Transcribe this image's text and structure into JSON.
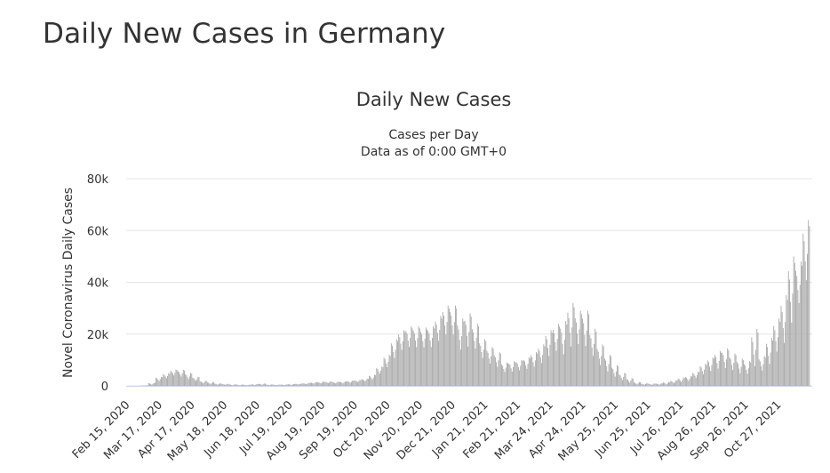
{
  "page": {
    "title": "Daily New Cases in Germany"
  },
  "chart_data": {
    "type": "bar",
    "title": "Daily New Cases",
    "subtitle": [
      "Cases per Day",
      "Data as of 0:00 GMT+0"
    ],
    "xlabel": "",
    "ylabel": "Novel Coronavirus Daily Cases",
    "ylim": [
      0,
      80000
    ],
    "yticks": [
      0,
      20000,
      40000,
      60000,
      80000
    ],
    "ytick_labels": [
      "0",
      "20k",
      "40k",
      "60k",
      "80k"
    ],
    "grid": true,
    "legend": "none",
    "bar_color": "#a6a6a6",
    "x_range": [
      "2020-02-15",
      "2021-11-28"
    ],
    "xtick_labels": [
      "Feb 15, 2020",
      "Mar 17, 2020",
      "Apr 17, 2020",
      "May 18, 2020",
      "Jun 18, 2020",
      "Jul 19, 2020",
      "Aug 19, 2020",
      "Sep 19, 2020",
      "Oct 20, 2020",
      "Nov 20, 2020",
      "Dec 21, 2020",
      "Jan 21, 2021",
      "Feb 21, 2021",
      "Mar 24, 2021",
      "Apr 24, 2021",
      "May 25, 2021",
      "Jun 25, 2021",
      "Jul 26, 2021",
      "Aug 26, 2021",
      "Sep 26, 2021",
      "Oct 27, 2021"
    ],
    "weekly": [
      {
        "week_of": "2020-02-15",
        "low": 0,
        "high": 0
      },
      {
        "week_of": "2020-02-22",
        "low": 0,
        "high": 30
      },
      {
        "week_of": "2020-02-29",
        "low": 50,
        "high": 200
      },
      {
        "week_of": "2020-03-07",
        "low": 300,
        "high": 1200
      },
      {
        "week_of": "2020-03-14",
        "low": 1500,
        "high": 3500
      },
      {
        "week_of": "2020-03-21",
        "low": 2500,
        "high": 4900
      },
      {
        "week_of": "2020-03-28",
        "low": 3500,
        "high": 6300
      },
      {
        "week_of": "2020-04-04",
        "low": 3000,
        "high": 6200
      },
      {
        "week_of": "2020-04-11",
        "low": 2000,
        "high": 5000
      },
      {
        "week_of": "2020-04-18",
        "low": 1500,
        "high": 3500
      },
      {
        "week_of": "2020-04-25",
        "low": 700,
        "high": 2000
      },
      {
        "week_of": "2020-05-02",
        "low": 500,
        "high": 1500
      },
      {
        "week_of": "2020-05-09",
        "low": 300,
        "high": 1000
      },
      {
        "week_of": "2020-05-16",
        "low": 300,
        "high": 800
      },
      {
        "week_of": "2020-05-23",
        "low": 200,
        "high": 600
      },
      {
        "week_of": "2020-05-30",
        "low": 150,
        "high": 500
      },
      {
        "week_of": "2020-06-06",
        "low": 150,
        "high": 450
      },
      {
        "week_of": "2020-06-13",
        "low": 200,
        "high": 700
      },
      {
        "week_of": "2020-06-20",
        "low": 300,
        "high": 900
      },
      {
        "week_of": "2020-06-27",
        "low": 250,
        "high": 550
      },
      {
        "week_of": "2020-07-04",
        "low": 200,
        "high": 500
      },
      {
        "week_of": "2020-07-11",
        "low": 250,
        "high": 550
      },
      {
        "week_of": "2020-07-18",
        "low": 300,
        "high": 700
      },
      {
        "week_of": "2020-07-25",
        "low": 400,
        "high": 900
      },
      {
        "week_of": "2020-08-01",
        "low": 500,
        "high": 1100
      },
      {
        "week_of": "2020-08-08",
        "low": 700,
        "high": 1400
      },
      {
        "week_of": "2020-08-15",
        "low": 800,
        "high": 1600
      },
      {
        "week_of": "2020-08-22",
        "low": 900,
        "high": 1700
      },
      {
        "week_of": "2020-08-29",
        "low": 800,
        "high": 1600
      },
      {
        "week_of": "2020-09-05",
        "low": 800,
        "high": 1700
      },
      {
        "week_of": "2020-09-12",
        "low": 1000,
        "high": 2000
      },
      {
        "week_of": "2020-09-19",
        "low": 1200,
        "high": 2300
      },
      {
        "week_of": "2020-09-26",
        "low": 1500,
        "high": 2800
      },
      {
        "week_of": "2020-10-03",
        "low": 2000,
        "high": 4300
      },
      {
        "week_of": "2020-10-10",
        "low": 4000,
        "high": 7500
      },
      {
        "week_of": "2020-10-17",
        "low": 6000,
        "high": 12000
      },
      {
        "week_of": "2020-10-24",
        "low": 9000,
        "high": 18000
      },
      {
        "week_of": "2020-10-31",
        "low": 12000,
        "high": 21500
      },
      {
        "week_of": "2020-11-07",
        "low": 13000,
        "high": 23000
      },
      {
        "week_of": "2020-11-14",
        "low": 13000,
        "high": 23000
      },
      {
        "week_of": "2020-11-21",
        "low": 13000,
        "high": 22500
      },
      {
        "week_of": "2020-11-28",
        "low": 13000,
        "high": 23000
      },
      {
        "week_of": "2020-12-05",
        "low": 15000,
        "high": 27000
      },
      {
        "week_of": "2020-12-12",
        "low": 17000,
        "high": 31000
      },
      {
        "week_of": "2020-12-19",
        "low": 17000,
        "high": 31000
      },
      {
        "week_of": "2020-12-26",
        "low": 11000,
        "high": 26000
      },
      {
        "week_of": "2021-01-02",
        "low": 12000,
        "high": 28000
      },
      {
        "week_of": "2021-01-09",
        "low": 12000,
        "high": 24000
      },
      {
        "week_of": "2021-01-16",
        "low": 9000,
        "high": 18000
      },
      {
        "week_of": "2021-01-23",
        "low": 7000,
        "high": 15000
      },
      {
        "week_of": "2021-01-30",
        "low": 6000,
        "high": 13000
      },
      {
        "week_of": "2021-02-06",
        "low": 4500,
        "high": 9000
      },
      {
        "week_of": "2021-02-13",
        "low": 4500,
        "high": 9500
      },
      {
        "week_of": "2021-02-20",
        "low": 5000,
        "high": 10000
      },
      {
        "week_of": "2021-02-27",
        "low": 5500,
        "high": 11000
      },
      {
        "week_of": "2021-03-06",
        "low": 6000,
        "high": 13000
      },
      {
        "week_of": "2021-03-13",
        "low": 7000,
        "high": 16000
      },
      {
        "week_of": "2021-03-20",
        "low": 9000,
        "high": 21500
      },
      {
        "week_of": "2021-03-27",
        "low": 11000,
        "high": 24000
      },
      {
        "week_of": "2021-04-03",
        "low": 9000,
        "high": 25000
      },
      {
        "week_of": "2021-04-10",
        "low": 11000,
        "high": 32000
      },
      {
        "week_of": "2021-04-17",
        "low": 13000,
        "high": 29000
      },
      {
        "week_of": "2021-04-24",
        "low": 12000,
        "high": 29000
      },
      {
        "week_of": "2021-05-01",
        "low": 9000,
        "high": 22000
      },
      {
        "week_of": "2021-05-08",
        "low": 6000,
        "high": 16000
      },
      {
        "week_of": "2021-05-15",
        "low": 4000,
        "high": 12000
      },
      {
        "week_of": "2021-05-22",
        "low": 2500,
        "high": 8000
      },
      {
        "week_of": "2021-05-29",
        "low": 1500,
        "high": 5000
      },
      {
        "week_of": "2021-06-05",
        "low": 800,
        "high": 3000
      },
      {
        "week_of": "2021-06-12",
        "low": 400,
        "high": 1500
      },
      {
        "week_of": "2021-06-19",
        "low": 300,
        "high": 1000
      },
      {
        "week_of": "2021-06-26",
        "low": 250,
        "high": 900
      },
      {
        "week_of": "2021-07-03",
        "low": 300,
        "high": 1000
      },
      {
        "week_of": "2021-07-10",
        "low": 400,
        "high": 1500
      },
      {
        "week_of": "2021-07-17",
        "low": 700,
        "high": 2200
      },
      {
        "week_of": "2021-07-24",
        "low": 1000,
        "high": 3200
      },
      {
        "week_of": "2021-07-31",
        "low": 1500,
        "high": 3800
      },
      {
        "week_of": "2021-08-07",
        "low": 2500,
        "high": 5500
      },
      {
        "week_of": "2021-08-14",
        "low": 3500,
        "high": 8500
      },
      {
        "week_of": "2021-08-21",
        "low": 4500,
        "high": 11000
      },
      {
        "week_of": "2021-08-28",
        "low": 5000,
        "high": 13500
      },
      {
        "week_of": "2021-09-04",
        "low": 5000,
        "high": 14500
      },
      {
        "week_of": "2021-09-11",
        "low": 4500,
        "high": 12500
      },
      {
        "week_of": "2021-09-18",
        "low": 3500,
        "high": 10500
      },
      {
        "week_of": "2021-09-25",
        "low": 3500,
        "high": 9500
      },
      {
        "week_of": "2021-10-02",
        "low": 4000,
        "high": 22000
      },
      {
        "week_of": "2021-10-09",
        "low": 4500,
        "high": 11500
      },
      {
        "week_of": "2021-10-16",
        "low": 6000,
        "high": 18500
      },
      {
        "week_of": "2021-10-23",
        "low": 10000,
        "high": 26000
      },
      {
        "week_of": "2021-10-30",
        "low": 12000,
        "high": 35000
      },
      {
        "week_of": "2021-11-06",
        "low": 18000,
        "high": 50000
      },
      {
        "week_of": "2021-11-13",
        "low": 28000,
        "high": 48000
      },
      {
        "week_of": "2021-11-20",
        "low": 35000,
        "high": 64000
      }
    ]
  }
}
